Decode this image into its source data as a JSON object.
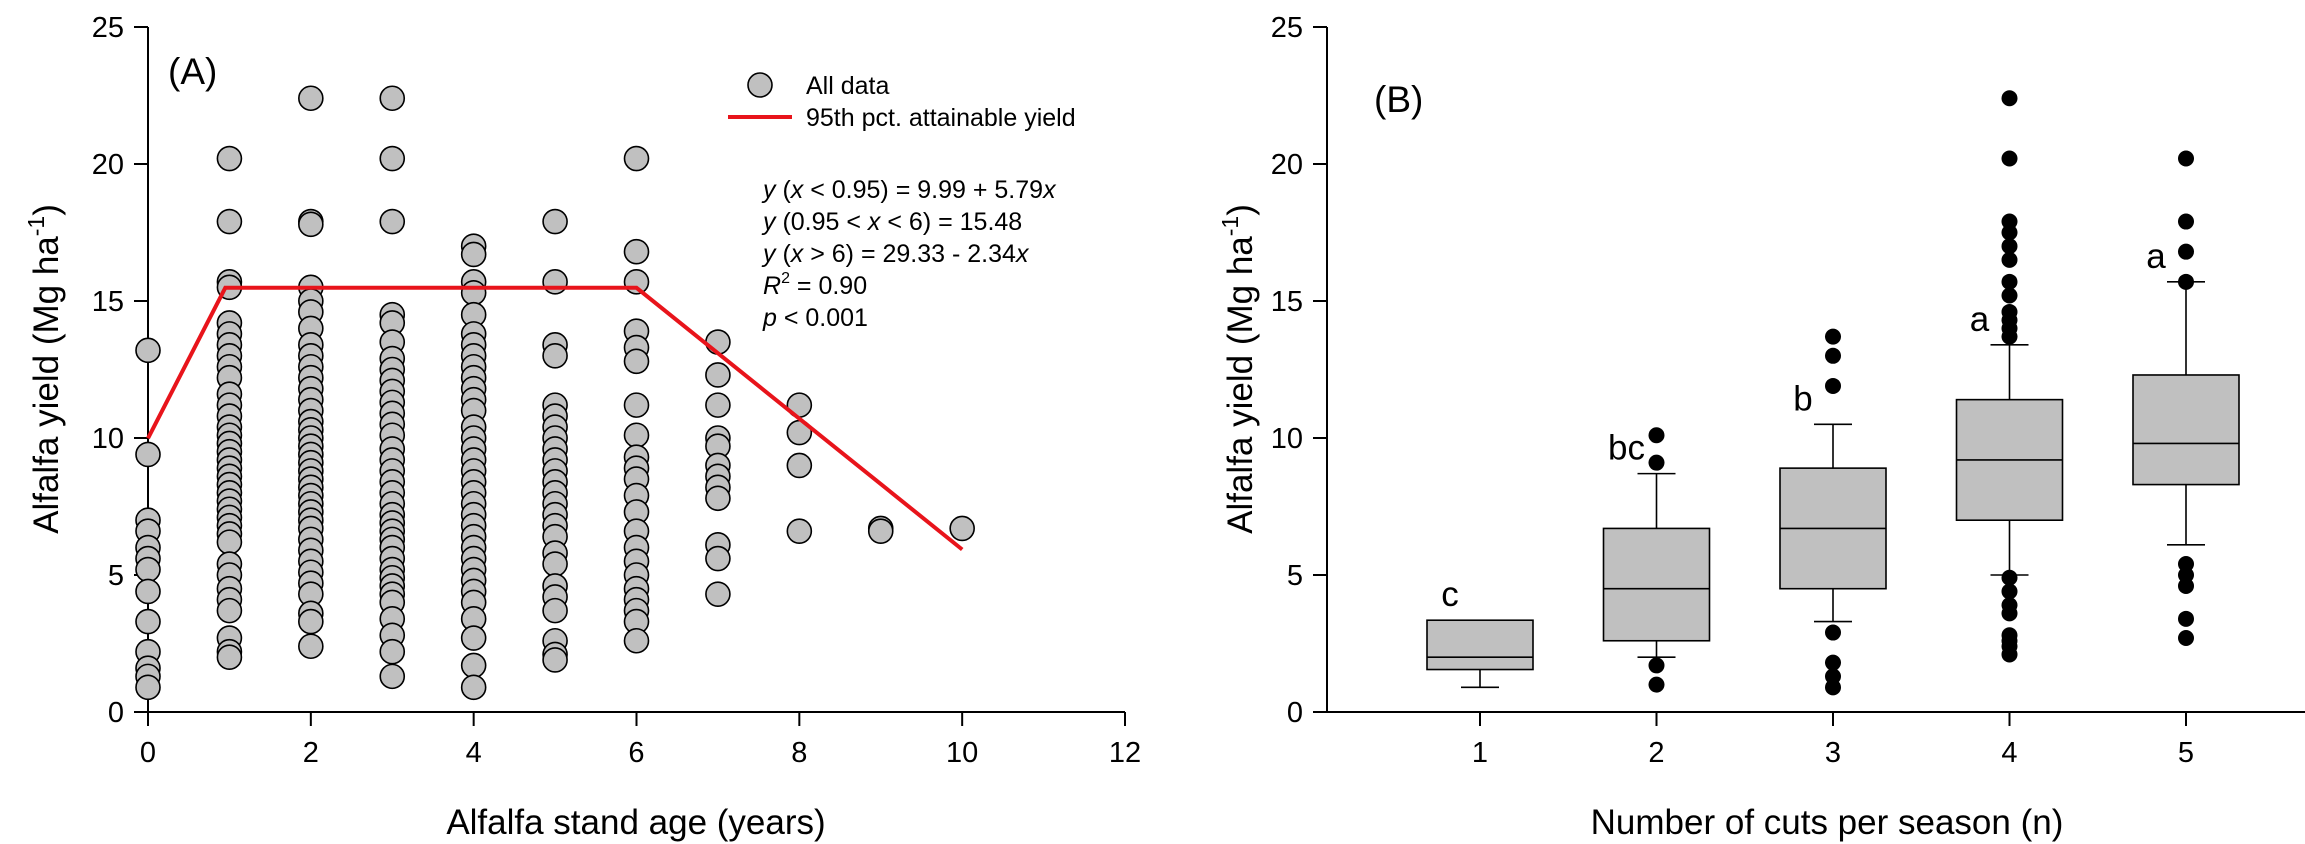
{
  "chart_data": [
    {
      "type": "scatter",
      "panel_label": "(A)",
      "xlabel": "Alfalfa stand age (years)",
      "ylabel": "Alfalfa yield (Mg ha",
      "ylabel_sup": "-1",
      "ylabel_close": ")",
      "xlim": [
        0,
        12
      ],
      "ylim": [
        0,
        25
      ],
      "xticks": [
        0,
        2,
        4,
        6,
        8,
        10,
        12
      ],
      "yticks": [
        0,
        5,
        10,
        15,
        20,
        25
      ],
      "grid": false,
      "legend": {
        "placement": "top-right",
        "entries": [
          {
            "label": "All data",
            "marker": "circle",
            "color": "#c0c0c0"
          },
          {
            "label": "95th pct. attainable yield",
            "marker": "line",
            "color": "#e8141b"
          }
        ]
      },
      "annotations": {
        "eq1": {
          "pre": "y",
          "mid": " (",
          "x": "x",
          "rest": " < 0.95) = 9.99 + 5.79",
          "xend": "x"
        },
        "eq2": {
          "pre": "y",
          "mid": " (0.95 < ",
          "x": "x",
          "rest": " < 6) = 15.48"
        },
        "eq3": {
          "pre": "y",
          "mid": " (",
          "x": "x",
          "rest": " > 6) = 29.33 - 2.34",
          "xend": "x"
        },
        "r2": {
          "r": "R",
          "sup": "2",
          "rest": " = 0.90"
        },
        "p": {
          "p": "p",
          "rest": " < 0.001"
        }
      },
      "series": [
        {
          "name": "All data",
          "mode": "points",
          "points": [
            [
              0,
              13.2
            ],
            [
              0,
              9.4
            ],
            [
              0,
              7.0
            ],
            [
              0,
              6.6
            ],
            [
              0,
              6.0
            ],
            [
              0,
              5.6
            ],
            [
              0,
              5.2
            ],
            [
              0,
              4.4
            ],
            [
              0,
              3.3
            ],
            [
              0,
              2.2
            ],
            [
              0,
              1.6
            ],
            [
              0,
              1.3
            ],
            [
              0,
              0.9
            ],
            [
              1,
              20.2
            ],
            [
              1,
              17.9
            ],
            [
              1,
              15.7
            ],
            [
              1,
              15.5
            ],
            [
              1,
              14.2
            ],
            [
              1,
              13.8
            ],
            [
              1,
              13.4
            ],
            [
              1,
              13.0
            ],
            [
              1,
              12.6
            ],
            [
              1,
              12.2
            ],
            [
              1,
              11.6
            ],
            [
              1,
              11.2
            ],
            [
              1,
              10.8
            ],
            [
              1,
              10.4
            ],
            [
              1,
              10.1
            ],
            [
              1,
              9.8
            ],
            [
              1,
              9.5
            ],
            [
              1,
              9.2
            ],
            [
              1,
              8.9
            ],
            [
              1,
              8.6
            ],
            [
              1,
              8.3
            ],
            [
              1,
              8.0
            ],
            [
              1,
              7.7
            ],
            [
              1,
              7.4
            ],
            [
              1,
              7.1
            ],
            [
              1,
              6.8
            ],
            [
              1,
              6.5
            ],
            [
              1,
              6.2
            ],
            [
              1,
              5.4
            ],
            [
              1,
              5.0
            ],
            [
              1,
              4.5
            ],
            [
              1,
              4.1
            ],
            [
              1,
              3.7
            ],
            [
              1,
              2.7
            ],
            [
              1,
              2.2
            ],
            [
              1,
              2.0
            ],
            [
              2,
              22.4
            ],
            [
              2,
              17.9
            ],
            [
              2,
              17.8
            ],
            [
              2,
              15.5
            ],
            [
              2,
              15.0
            ],
            [
              2,
              14.6
            ],
            [
              2,
              14.0
            ],
            [
              2,
              13.4
            ],
            [
              2,
              13.0
            ],
            [
              2,
              12.6
            ],
            [
              2,
              12.2
            ],
            [
              2,
              11.8
            ],
            [
              2,
              11.4
            ],
            [
              2,
              11.0
            ],
            [
              2,
              10.6
            ],
            [
              2,
              10.3
            ],
            [
              2,
              10.0
            ],
            [
              2,
              9.7
            ],
            [
              2,
              9.4
            ],
            [
              2,
              9.1
            ],
            [
              2,
              8.8
            ],
            [
              2,
              8.5
            ],
            [
              2,
              8.2
            ],
            [
              2,
              7.9
            ],
            [
              2,
              7.6
            ],
            [
              2,
              7.3
            ],
            [
              2,
              7.0
            ],
            [
              2,
              6.7
            ],
            [
              2,
              6.3
            ],
            [
              2,
              5.9
            ],
            [
              2,
              5.5
            ],
            [
              2,
              5.1
            ],
            [
              2,
              4.7
            ],
            [
              2,
              4.3
            ],
            [
              2,
              3.6
            ],
            [
              2,
              3.3
            ],
            [
              2,
              2.4
            ],
            [
              3,
              22.4
            ],
            [
              3,
              20.2
            ],
            [
              3,
              17.9
            ],
            [
              3,
              14.5
            ],
            [
              3,
              14.2
            ],
            [
              3,
              13.5
            ],
            [
              3,
              12.9
            ],
            [
              3,
              12.5
            ],
            [
              3,
              12.1
            ],
            [
              3,
              11.7
            ],
            [
              3,
              11.3
            ],
            [
              3,
              10.9
            ],
            [
              3,
              10.5
            ],
            [
              3,
              10.1
            ],
            [
              3,
              9.6
            ],
            [
              3,
              9.2
            ],
            [
              3,
              8.8
            ],
            [
              3,
              8.4
            ],
            [
              3,
              8.0
            ],
            [
              3,
              7.6
            ],
            [
              3,
              7.2
            ],
            [
              3,
              6.9
            ],
            [
              3,
              6.6
            ],
            [
              3,
              6.3
            ],
            [
              3,
              6.0
            ],
            [
              3,
              5.6
            ],
            [
              3,
              5.2
            ],
            [
              3,
              4.9
            ],
            [
              3,
              4.6
            ],
            [
              3,
              4.3
            ],
            [
              3,
              4.0
            ],
            [
              3,
              3.4
            ],
            [
              3,
              2.8
            ],
            [
              3,
              2.2
            ],
            [
              3,
              1.3
            ],
            [
              4,
              17.0
            ],
            [
              4,
              16.7
            ],
            [
              4,
              15.7
            ],
            [
              4,
              15.3
            ],
            [
              4,
              14.5
            ],
            [
              4,
              13.8
            ],
            [
              4,
              13.4
            ],
            [
              4,
              13.0
            ],
            [
              4,
              12.6
            ],
            [
              4,
              12.2
            ],
            [
              4,
              11.8
            ],
            [
              4,
              11.4
            ],
            [
              4,
              11.0
            ],
            [
              4,
              10.4
            ],
            [
              4,
              10.0
            ],
            [
              4,
              9.6
            ],
            [
              4,
              9.2
            ],
            [
              4,
              8.8
            ],
            [
              4,
              8.4
            ],
            [
              4,
              8.0
            ],
            [
              4,
              7.6
            ],
            [
              4,
              7.2
            ],
            [
              4,
              6.8
            ],
            [
              4,
              6.4
            ],
            [
              4,
              6.0
            ],
            [
              4,
              5.6
            ],
            [
              4,
              5.2
            ],
            [
              4,
              4.8
            ],
            [
              4,
              4.4
            ],
            [
              4,
              4.0
            ],
            [
              4,
              3.4
            ],
            [
              4,
              2.7
            ],
            [
              4,
              1.7
            ],
            [
              4,
              0.9
            ],
            [
              5,
              17.9
            ],
            [
              5,
              15.7
            ],
            [
              5,
              13.4
            ],
            [
              5,
              13.0
            ],
            [
              5,
              11.2
            ],
            [
              5,
              10.8
            ],
            [
              5,
              10.4
            ],
            [
              5,
              10.0
            ],
            [
              5,
              9.6
            ],
            [
              5,
              9.2
            ],
            [
              5,
              8.8
            ],
            [
              5,
              8.4
            ],
            [
              5,
              8.0
            ],
            [
              5,
              7.6
            ],
            [
              5,
              7.2
            ],
            [
              5,
              6.8
            ],
            [
              5,
              6.4
            ],
            [
              5,
              5.8
            ],
            [
              5,
              5.4
            ],
            [
              5,
              4.6
            ],
            [
              5,
              4.2
            ],
            [
              5,
              3.7
            ],
            [
              5,
              2.6
            ],
            [
              5,
              2.1
            ],
            [
              5,
              1.9
            ],
            [
              6,
              20.2
            ],
            [
              6,
              16.8
            ],
            [
              6,
              15.7
            ],
            [
              6,
              13.9
            ],
            [
              6,
              13.3
            ],
            [
              6,
              12.8
            ],
            [
              6,
              11.2
            ],
            [
              6,
              10.1
            ],
            [
              6,
              9.3
            ],
            [
              6,
              8.9
            ],
            [
              6,
              8.5
            ],
            [
              6,
              7.9
            ],
            [
              6,
              7.3
            ],
            [
              6,
              6.6
            ],
            [
              6,
              6.0
            ],
            [
              6,
              5.5
            ],
            [
              6,
              5.0
            ],
            [
              6,
              4.5
            ],
            [
              6,
              4.1
            ],
            [
              6,
              3.7
            ],
            [
              6,
              3.3
            ],
            [
              6,
              2.6
            ],
            [
              7,
              13.5
            ],
            [
              7,
              12.3
            ],
            [
              7,
              11.2
            ],
            [
              7,
              10.0
            ],
            [
              7,
              9.7
            ],
            [
              7,
              9.0
            ],
            [
              7,
              8.6
            ],
            [
              7,
              8.2
            ],
            [
              7,
              7.8
            ],
            [
              7,
              6.1
            ],
            [
              7,
              5.6
            ],
            [
              7,
              4.3
            ],
            [
              8,
              11.2
            ],
            [
              8,
              10.2
            ],
            [
              8,
              9.0
            ],
            [
              8,
              6.6
            ],
            [
              9,
              6.7
            ],
            [
              9,
              6.6
            ],
            [
              10,
              6.7
            ]
          ]
        },
        {
          "name": "95th pct. attainable yield",
          "mode": "line",
          "points": [
            [
              0,
              9.99
            ],
            [
              0.95,
              15.48
            ],
            [
              6,
              15.48
            ],
            [
              10,
              5.93
            ]
          ]
        }
      ]
    },
    {
      "type": "box",
      "panel_label": "(B)",
      "xlabel": "Number of cuts per season (n)",
      "ylabel": "Alfalfa yield (Mg ha",
      "ylabel_sup": "-1",
      "ylabel_close": ")",
      "categories": [
        "1",
        "2",
        "3",
        "4",
        "5"
      ],
      "ylim": [
        0,
        25
      ],
      "yticks": [
        0,
        5,
        10,
        15,
        20,
        25
      ],
      "grid": false,
      "boxes": [
        {
          "category": "1",
          "whisker_low": 0.9,
          "q1": 1.55,
          "median": 2.0,
          "q3": 3.35,
          "whisker_high": null,
          "outliers": [],
          "letter": "c"
        },
        {
          "category": "2",
          "whisker_low": 2.0,
          "q1": 2.6,
          "median": 4.5,
          "q3": 6.7,
          "whisker_high": 8.7,
          "outliers": [
            10.1,
            9.1,
            1.7,
            1.0
          ],
          "letter": "bc"
        },
        {
          "category": "3",
          "whisker_low": 3.3,
          "q1": 4.5,
          "median": 6.7,
          "q3": 8.9,
          "whisker_high": 10.5,
          "outliers": [
            13.7,
            13.0,
            11.9,
            2.9,
            1.8,
            1.3,
            0.9
          ],
          "letter": "b"
        },
        {
          "category": "4",
          "whisker_low": 5.0,
          "q1": 7.0,
          "median": 9.2,
          "q3": 11.4,
          "whisker_high": 13.4,
          "outliers": [
            22.4,
            20.2,
            17.9,
            17.5,
            17.0,
            16.5,
            15.7,
            15.2,
            14.6,
            14.3,
            14.0,
            13.7,
            4.9,
            4.4,
            3.9,
            3.6,
            2.8,
            2.6,
            2.4,
            2.1
          ],
          "letter": "a"
        },
        {
          "category": "5",
          "whisker_low": 6.1,
          "q1": 8.3,
          "median": 9.8,
          "q3": 12.3,
          "whisker_high": 15.7,
          "outliers": [
            20.2,
            17.9,
            16.8,
            15.7,
            5.4,
            5.0,
            4.6,
            3.4,
            2.7
          ],
          "letter": "a"
        }
      ]
    }
  ]
}
